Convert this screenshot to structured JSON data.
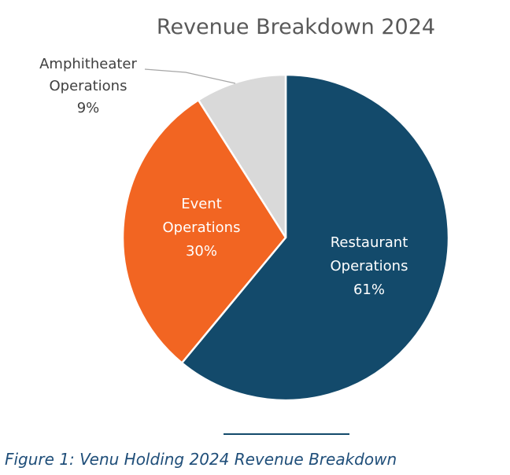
{
  "chart_data": {
    "type": "pie",
    "title": "Revenue Breakdown 2024",
    "categories": [
      "Restaurant Operations",
      "Event Operations",
      "Amphitheater Operations"
    ],
    "values": [
      61,
      30,
      9
    ],
    "labels": [
      {
        "lines": [
          "Restaurant",
          "Operations",
          "61%"
        ]
      },
      {
        "lines": [
          "Event",
          "Operations",
          "30%"
        ]
      },
      {
        "lines": [
          "Amphitheater",
          "Operations",
          "9%"
        ]
      }
    ],
    "colors": [
      "#134a6b",
      "#f26522",
      "#d9d9d9"
    ],
    "label_colors": [
      "#ffffff",
      "#ffffff",
      "#404040"
    ],
    "start": "12 o'clock",
    "direction": "clockwise"
  },
  "caption": "Figure 1: Venu Holding 2024 Revenue Breakdown"
}
